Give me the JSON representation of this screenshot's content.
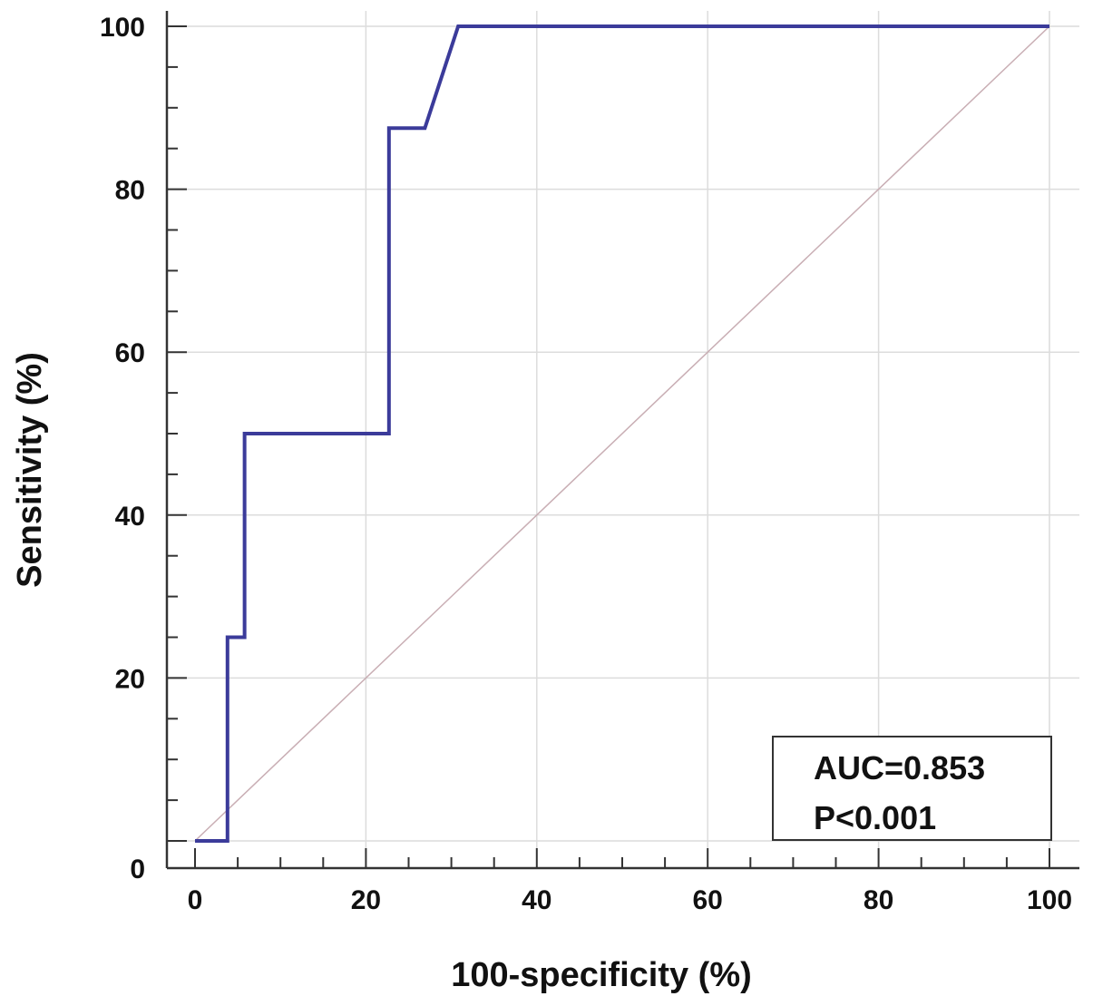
{
  "chart_data": {
    "type": "line",
    "title": "",
    "xlabel": "100-specificity (%)",
    "ylabel": "Sensitivity (%)",
    "xlim": [
      0,
      100
    ],
    "ylim": [
      0,
      100
    ],
    "x_ticks": [
      0,
      20,
      40,
      60,
      80,
      100
    ],
    "y_ticks": [
      0,
      20,
      40,
      60,
      80,
      100
    ],
    "grid": true,
    "series": [
      {
        "name": "",
        "color": "#3b3b9a",
        "x": [
          0,
          3.8,
          3.8,
          5.8,
          5.8,
          22.7,
          22.7,
          26.9,
          30.8,
          100
        ],
        "y": [
          0,
          0,
          25,
          25,
          50,
          50,
          87.5,
          87.5,
          100,
          100
        ]
      },
      {
        "name": "",
        "color": "#c9aeb4",
        "x": [
          0,
          100
        ],
        "y": [
          0,
          100
        ]
      }
    ],
    "annotations": {
      "auc": "AUC=0.853",
      "p": "P<0.001"
    }
  }
}
